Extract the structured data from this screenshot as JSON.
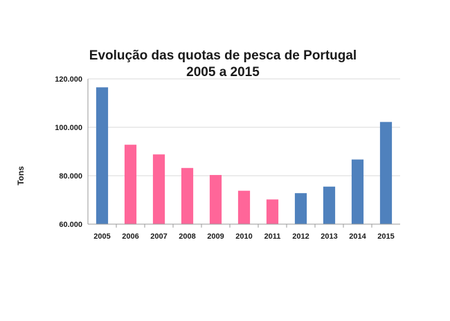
{
  "chart_data": {
    "type": "bar",
    "title_line1": "Evolução das quotas de pesca de Portugal",
    "title_line2": "2005 a 2015",
    "ylabel": "Tons",
    "xlabel": "",
    "ylim": [
      60000,
      120000
    ],
    "yticks": [
      60000,
      80000,
      100000,
      120000
    ],
    "ytick_labels": [
      "60.000",
      "80.000",
      "100.000",
      "120.000"
    ],
    "grid": true,
    "categories": [
      "2005",
      "2006",
      "2007",
      "2008",
      "2009",
      "2010",
      "2011",
      "2012",
      "2013",
      "2014",
      "2015"
    ],
    "values": [
      116500,
      92800,
      88800,
      83200,
      80300,
      73800,
      70200,
      72800,
      75500,
      86700,
      102200
    ],
    "colors": [
      "#4f81bd",
      "#ff6699",
      "#ff6699",
      "#ff6699",
      "#ff6699",
      "#ff6699",
      "#ff6699",
      "#4f81bd",
      "#4f81bd",
      "#4f81bd",
      "#4f81bd"
    ]
  }
}
